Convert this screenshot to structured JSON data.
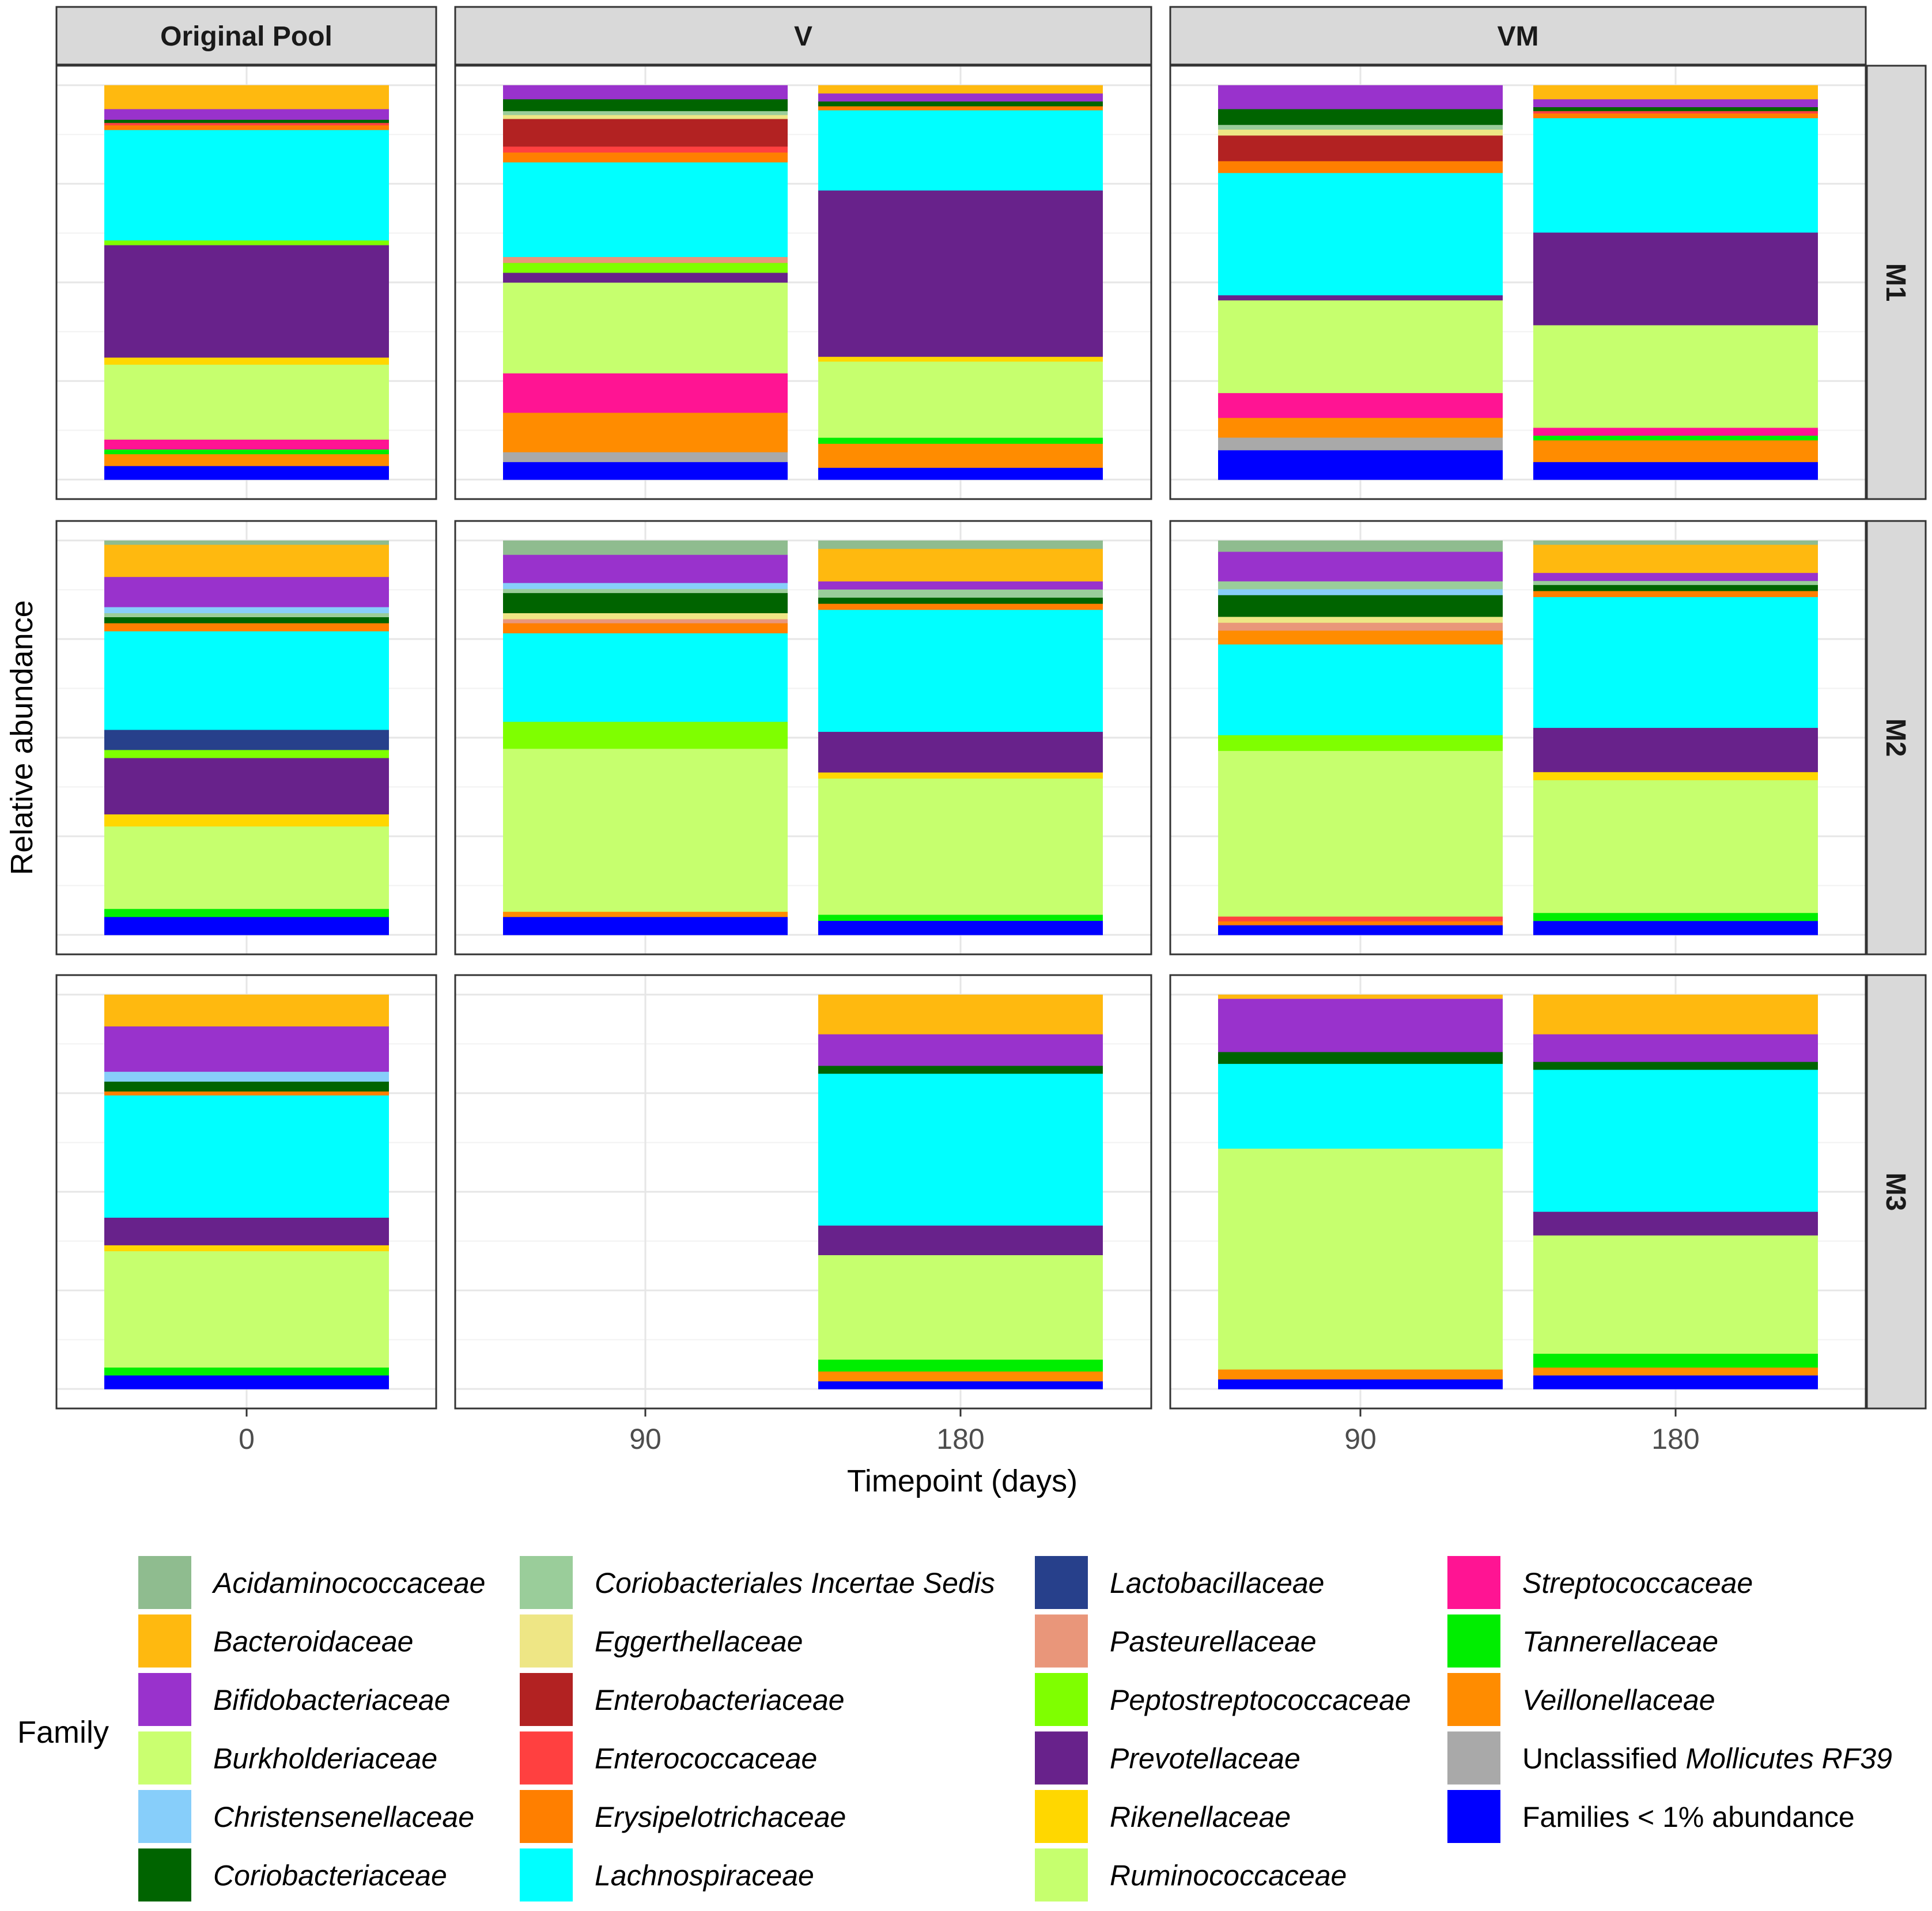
{
  "chart_data": {
    "type": "bar",
    "stacked": true,
    "normalized": true,
    "xlabel": "Timepoint (days)",
    "ylabel": "Relative abundance",
    "ylim": [
      0,
      1
    ],
    "column_facets": [
      {
        "label": "Original Pool",
        "x": [
          "0"
        ]
      },
      {
        "label": "V",
        "x": [
          "90",
          "180"
        ]
      },
      {
        "label": "VM",
        "x": [
          "90",
          "180"
        ]
      }
    ],
    "row_facets": [
      "M1",
      "M2",
      "M3"
    ],
    "legend": {
      "title": "Family",
      "position": "bottom",
      "entries": [
        {
          "name": "Acidaminococcaceae",
          "plain": "",
          "italic": "Acidaminococcaceae",
          "color": "#8FBC8F"
        },
        {
          "name": "Bacteroidaceae",
          "plain": "",
          "italic": "Bacteroidaceae",
          "color": "#FFB90F"
        },
        {
          "name": "Bifidobacteriaceae",
          "plain": "",
          "italic": "Bifidobacteriaceae",
          "color": "#9932CC"
        },
        {
          "name": "Burkholderiaceae",
          "plain": "",
          "italic": "Burkholderiaceae",
          "color": "#CAFF70"
        },
        {
          "name": "Christensenellaceae",
          "plain": "",
          "italic": "Christensenellaceae",
          "color": "#87CEFA"
        },
        {
          "name": "Coriobacteriaceae",
          "plain": "",
          "italic": "Coriobacteriaceae",
          "color": "#006400"
        },
        {
          "name": "Coriobacteriales Incertae Sedis",
          "plain": "",
          "italic": "Coriobacteriales Incertae Sedis",
          "color": "#9ACD9A"
        },
        {
          "name": "Eggerthellaceae",
          "plain": "",
          "italic": "Eggerthellaceae",
          "color": "#EEE685"
        },
        {
          "name": "Enterobacteriaceae",
          "plain": "",
          "italic": "Enterobacteriaceae",
          "color": "#B22222"
        },
        {
          "name": "Enterococcaceae",
          "plain": "",
          "italic": "Enterococcaceae",
          "color": "#FF4040"
        },
        {
          "name": "Erysipelotrichaceae",
          "plain": "",
          "italic": "Erysipelotrichaceae",
          "color": "#FF7F00"
        },
        {
          "name": "Lachnospiraceae",
          "plain": "",
          "italic": "Lachnospiraceae",
          "color": "#00FFFF"
        },
        {
          "name": "Lactobacillaceae",
          "plain": "",
          "italic": "Lactobacillaceae",
          "color": "#27408B"
        },
        {
          "name": "Pasteurellaceae",
          "plain": "",
          "italic": "Pasteurellaceae",
          "color": "#E9967A"
        },
        {
          "name": "Peptostreptococcaceae",
          "plain": "",
          "italic": "Peptostreptococcaceae",
          "color": "#7FFF00"
        },
        {
          "name": "Prevotellaceae",
          "plain": "",
          "italic": "Prevotellaceae",
          "color": "#68228B"
        },
        {
          "name": "Rikenellaceae",
          "plain": "",
          "italic": "Rikenellaceae",
          "color": "#FFD700"
        },
        {
          "name": "Ruminococcaceae",
          "plain": "",
          "italic": "Ruminococcaceae",
          "color": "#C6FF6E"
        },
        {
          "name": "Streptococcaceae",
          "plain": "",
          "italic": "Streptococcaceae",
          "color": "#FF1493"
        },
        {
          "name": "Tannerellaceae",
          "plain": "",
          "italic": "Tannerellaceae",
          "color": "#00EE00"
        },
        {
          "name": "Veillonellaceae",
          "plain": "",
          "italic": "Veillonellaceae",
          "color": "#FF8C00"
        },
        {
          "name": "Unclassified Mollicutes RF39",
          "plain": "Unclassified ",
          "italic": "Mollicutes RF39",
          "color": "#A9A9A9"
        },
        {
          "name": "Families < 1% abundance",
          "plain": "Families < 1% abundance",
          "italic": "",
          "color": "#0000FF"
        }
      ]
    },
    "bars": [
      {
        "row": "M1",
        "col": "Original Pool",
        "x": "0",
        "segments": [
          [
            "Families < 1% abundance",
            0.035
          ],
          [
            "Veillonellaceae",
            0.03
          ],
          [
            "Tannerellaceae",
            0.012
          ],
          [
            "Streptococcaceae",
            0.025
          ],
          [
            "Ruminococcaceae",
            0.19
          ],
          [
            "Rikenellaceae",
            0.018
          ],
          [
            "Prevotellaceae",
            0.285
          ],
          [
            "Peptostreptococcaceae",
            0.012
          ],
          [
            "Lachnospiraceae",
            0.28
          ],
          [
            "Erysipelotrichaceae",
            0.012
          ],
          [
            "Enterococcaceae",
            0.006
          ],
          [
            "Coriobacteriaceae",
            0.008
          ],
          [
            "Bifidobacteriaceae",
            0.027
          ],
          [
            "Bacteroidaceae",
            0.06
          ]
        ]
      },
      {
        "row": "M1",
        "col": "V",
        "x": "90",
        "segments": [
          [
            "Families < 1% abundance",
            0.045
          ],
          [
            "Unclassified Mollicutes RF39",
            0.025
          ],
          [
            "Veillonellaceae",
            0.1
          ],
          [
            "Streptococcaceae",
            0.1
          ],
          [
            "Ruminococcaceae",
            0.23
          ],
          [
            "Prevotellaceae",
            0.025
          ],
          [
            "Peptostreptococcaceae",
            0.025
          ],
          [
            "Pasteurellaceae",
            0.015
          ],
          [
            "Lachnospiraceae",
            0.24
          ],
          [
            "Erysipelotrichaceae",
            0.025
          ],
          [
            "Enterococcaceae",
            0.015
          ],
          [
            "Enterobacteriaceae",
            0.07
          ],
          [
            "Eggerthellaceae",
            0.01
          ],
          [
            "Coriobacteriales Incertae Sedis",
            0.01
          ],
          [
            "Coriobacteriaceae",
            0.03
          ],
          [
            "Bifidobacteriaceae",
            0.035
          ]
        ]
      },
      {
        "row": "M1",
        "col": "V",
        "x": "180",
        "segments": [
          [
            "Families < 1% abundance",
            0.03
          ],
          [
            "Veillonellaceae",
            0.06
          ],
          [
            "Tannerellaceae",
            0.015
          ],
          [
            "Ruminococcaceae",
            0.19
          ],
          [
            "Rikenellaceae",
            0.012
          ],
          [
            "Prevotellaceae",
            0.415
          ],
          [
            "Lachnospiraceae",
            0.2
          ],
          [
            "Erysipelotrichaceae",
            0.01
          ],
          [
            "Coriobacteriaceae",
            0.012
          ],
          [
            "Bifidobacteriaceae",
            0.02
          ],
          [
            "Bacteroidaceae",
            0.02
          ]
        ]
      },
      {
        "row": "M1",
        "col": "VM",
        "x": "90",
        "segments": [
          [
            "Families < 1% abundance",
            0.075
          ],
          [
            "Unclassified Mollicutes RF39",
            0.032
          ],
          [
            "Veillonellaceae",
            0.05
          ],
          [
            "Streptococcaceae",
            0.063
          ],
          [
            "Ruminococcaceae",
            0.235
          ],
          [
            "Prevotellaceae",
            0.013
          ],
          [
            "Lachnospiraceae",
            0.31
          ],
          [
            "Erysipelotrichaceae",
            0.03
          ],
          [
            "Enterobacteriaceae",
            0.065
          ],
          [
            "Eggerthellaceae",
            0.015
          ],
          [
            "Coriobacteriales Incertae Sedis",
            0.012
          ],
          [
            "Coriobacteriaceae",
            0.04
          ],
          [
            "Bifidobacteriaceae",
            0.06
          ]
        ]
      },
      {
        "row": "M1",
        "col": "VM",
        "x": "180",
        "segments": [
          [
            "Families < 1% abundance",
            0.045
          ],
          [
            "Veillonellaceae",
            0.055
          ],
          [
            "Tannerellaceae",
            0.012
          ],
          [
            "Streptococcaceae",
            0.02
          ],
          [
            "Ruminococcaceae",
            0.26
          ],
          [
            "Prevotellaceae",
            0.235
          ],
          [
            "Lachnospiraceae",
            0.29
          ],
          [
            "Erysipelotrichaceae",
            0.012
          ],
          [
            "Enterococcaceae",
            0.006
          ],
          [
            "Coriobacteriaceae",
            0.01
          ],
          [
            "Bifidobacteriaceae",
            0.02
          ],
          [
            "Bacteroidaceae",
            0.035
          ]
        ]
      },
      {
        "row": "M2",
        "col": "Original Pool",
        "x": "0",
        "segments": [
          [
            "Families < 1% abundance",
            0.045
          ],
          [
            "Tannerellaceae",
            0.02
          ],
          [
            "Ruminococcaceae",
            0.205
          ],
          [
            "Rikenellaceae",
            0.03
          ],
          [
            "Prevotellaceae",
            0.14
          ],
          [
            "Peptostreptococcaceae",
            0.02
          ],
          [
            "Lactobacillaceae",
            0.05
          ],
          [
            "Lachnospiraceae",
            0.245
          ],
          [
            "Erysipelotrichaceae",
            0.02
          ],
          [
            "Coriobacteriaceae",
            0.015
          ],
          [
            "Coriobacteriales Incertae Sedis",
            0.01
          ],
          [
            "Christensenellaceae",
            0.015
          ],
          [
            "Bifidobacteriaceae",
            0.075
          ],
          [
            "Bacteroidaceae",
            0.08
          ],
          [
            "Acidaminococcaceae",
            0.01
          ]
        ]
      },
      {
        "row": "M2",
        "col": "V",
        "x": "90",
        "segments": [
          [
            "Families < 1% abundance",
            0.045
          ],
          [
            "Veillonellaceae",
            0.013
          ],
          [
            "Ruminococcaceae",
            0.405
          ],
          [
            "Peptostreptococcaceae",
            0.067
          ],
          [
            "Lachnospiraceae",
            0.22
          ],
          [
            "Erysipelotrichaceae",
            0.025
          ],
          [
            "Pasteurellaceae",
            0.01
          ],
          [
            "Eggerthellaceae",
            0.015
          ],
          [
            "Coriobacteriaceae",
            0.05
          ],
          [
            "Coriobacteriales Incertae Sedis",
            0.01
          ],
          [
            "Christensenellaceae",
            0.015
          ],
          [
            "Bifidobacteriaceae",
            0.07
          ],
          [
            "Acidaminococcaceae",
            0.035
          ]
        ]
      },
      {
        "row": "M2",
        "col": "V",
        "x": "180",
        "segments": [
          [
            "Families < 1% abundance",
            0.035
          ],
          [
            "Tannerellaceae",
            0.015
          ],
          [
            "Ruminococcaceae",
            0.335
          ],
          [
            "Rikenellaceae",
            0.015
          ],
          [
            "Prevotellaceae",
            0.1
          ],
          [
            "Lachnospiraceae",
            0.3
          ],
          [
            "Erysipelotrichaceae",
            0.015
          ],
          [
            "Coriobacteriaceae",
            0.015
          ],
          [
            "Coriobacteriales Incertae Sedis",
            0.02
          ],
          [
            "Bifidobacteriaceae",
            0.02
          ],
          [
            "Bacteroidaceae",
            0.08
          ],
          [
            "Acidaminococcaceae",
            0.02
          ]
        ]
      },
      {
        "row": "M2",
        "col": "VM",
        "x": "90",
        "segments": [
          [
            "Families < 1% abundance",
            0.025
          ],
          [
            "Erysipelotrichaceae",
            0.01
          ],
          [
            "Enterococcaceae",
            0.012
          ],
          [
            "Ruminococcaceae",
            0.42
          ],
          [
            "Peptostreptococcaceae",
            0.04
          ],
          [
            "Lachnospiraceae",
            0.23
          ],
          [
            "Veillonellaceae",
            0.035
          ],
          [
            "Pasteurellaceae",
            0.02
          ],
          [
            "Eggerthellaceae",
            0.015
          ],
          [
            "Coriobacteriaceae",
            0.055
          ],
          [
            "Christensenellaceae",
            0.015
          ],
          [
            "Coriobacteriales Incertae Sedis",
            0.02
          ],
          [
            "Bifidobacteriaceae",
            0.075
          ],
          [
            "Acidaminococcaceae",
            0.028
          ]
        ]
      },
      {
        "row": "M2",
        "col": "VM",
        "x": "180",
        "segments": [
          [
            "Families < 1% abundance",
            0.035
          ],
          [
            "Tannerellaceae",
            0.02
          ],
          [
            "Ruminococcaceae",
            0.33
          ],
          [
            "Rikenellaceae",
            0.02
          ],
          [
            "Prevotellaceae",
            0.11
          ],
          [
            "Lachnospiraceae",
            0.325
          ],
          [
            "Erysipelotrichaceae",
            0.015
          ],
          [
            "Coriobacteriaceae",
            0.015
          ],
          [
            "Coriobacteriales Incertae Sedis",
            0.01
          ],
          [
            "Bifidobacteriaceae",
            0.02
          ],
          [
            "Bacteroidaceae",
            0.07
          ],
          [
            "Acidaminococcaceae",
            0.01
          ]
        ]
      },
      {
        "row": "M3",
        "col": "Original Pool",
        "x": "0",
        "segments": [
          [
            "Families < 1% abundance",
            0.035
          ],
          [
            "Tannerellaceae",
            0.02
          ],
          [
            "Ruminococcaceae",
            0.295
          ],
          [
            "Rikenellaceae",
            0.015
          ],
          [
            "Prevotellaceae",
            0.07
          ],
          [
            "Lachnospiraceae",
            0.31
          ],
          [
            "Erysipelotrichaceae",
            0.01
          ],
          [
            "Coriobacteriaceae",
            0.025
          ],
          [
            "Christensenellaceae",
            0.025
          ],
          [
            "Bifidobacteriaceae",
            0.115
          ],
          [
            "Bacteroidaceae",
            0.08
          ]
        ]
      },
      {
        "row": "M3",
        "col": "V",
        "x": "180",
        "segments": [
          [
            "Families < 1% abundance",
            0.02
          ],
          [
            "Veillonellaceae",
            0.025
          ],
          [
            "Tannerellaceae",
            0.03
          ],
          [
            "Ruminococcaceae",
            0.265
          ],
          [
            "Prevotellaceae",
            0.075
          ],
          [
            "Lachnospiraceae",
            0.385
          ],
          [
            "Coriobacteriaceae",
            0.02
          ],
          [
            "Bifidobacteriaceae",
            0.08
          ],
          [
            "Bacteroidaceae",
            0.1
          ]
        ]
      },
      {
        "row": "M3",
        "col": "VM",
        "x": "90",
        "segments": [
          [
            "Families < 1% abundance",
            0.025
          ],
          [
            "Veillonellaceae",
            0.025
          ],
          [
            "Ruminococcaceae",
            0.56
          ],
          [
            "Lachnospiraceae",
            0.215
          ],
          [
            "Coriobacteriaceae",
            0.03
          ],
          [
            "Bifidobacteriaceae",
            0.135
          ],
          [
            "Bacteroidaceae",
            0.01
          ]
        ]
      },
      {
        "row": "M3",
        "col": "VM",
        "x": "180",
        "segments": [
          [
            "Families < 1% abundance",
            0.035
          ],
          [
            "Veillonellaceae",
            0.02
          ],
          [
            "Tannerellaceae",
            0.035
          ],
          [
            "Ruminococcaceae",
            0.3
          ],
          [
            "Prevotellaceae",
            0.06
          ],
          [
            "Lachnospiraceae",
            0.36
          ],
          [
            "Coriobacteriaceae",
            0.02
          ],
          [
            "Bifidobacteriaceae",
            0.07
          ],
          [
            "Bacteroidaceae",
            0.1
          ]
        ]
      }
    ]
  }
}
